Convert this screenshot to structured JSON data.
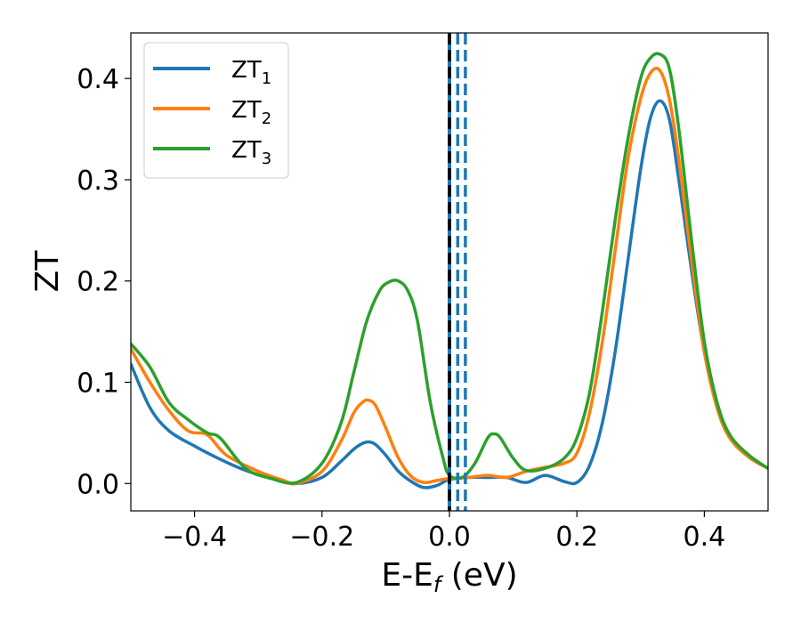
{
  "chart_data": {
    "type": "line",
    "title": "",
    "xlabel": "E-E",
    "xlabel_subscript": "f",
    "xlabel_unit": " (eV)",
    "ylabel": "ZT",
    "xlim": [
      -0.5,
      0.5
    ],
    "ylim": [
      -0.027,
      0.445
    ],
    "x_ticks": [
      -0.4,
      -0.2,
      0.0,
      0.2,
      0.4
    ],
    "x_tick_labels": [
      "−0.4",
      "−0.2",
      "0.0",
      "0.2",
      "0.4"
    ],
    "y_ticks": [
      0.0,
      0.1,
      0.2,
      0.3,
      0.4
    ],
    "y_tick_labels": [
      "0.0",
      "0.1",
      "0.2",
      "0.3",
      "0.4"
    ],
    "grid": false,
    "legend_position": "top-left",
    "series": [
      {
        "name": "ZT",
        "name_subscript": "1",
        "color": "#1f77b4",
        "x": [
          -0.5,
          -0.47,
          -0.44,
          -0.4,
          -0.36,
          -0.32,
          -0.28,
          -0.24,
          -0.2,
          -0.17,
          -0.15,
          -0.135,
          -0.125,
          -0.115,
          -0.1,
          -0.08,
          -0.06,
          -0.04,
          -0.02,
          0.0,
          0.03,
          0.06,
          0.09,
          0.12,
          0.15,
          0.18,
          0.2,
          0.22,
          0.24,
          0.26,
          0.28,
          0.3,
          0.315,
          0.33,
          0.345,
          0.36,
          0.38,
          0.4,
          0.42,
          0.44,
          0.47,
          0.5
        ],
        "y": [
          0.118,
          0.075,
          0.052,
          0.037,
          0.024,
          0.013,
          0.005,
          0.0,
          0.006,
          0.022,
          0.034,
          0.04,
          0.041,
          0.038,
          0.028,
          0.012,
          0.002,
          -0.004,
          -0.002,
          0.004,
          0.006,
          0.006,
          0.006,
          0.001,
          0.008,
          0.002,
          0.001,
          0.018,
          0.06,
          0.13,
          0.22,
          0.31,
          0.36,
          0.378,
          0.36,
          0.3,
          0.21,
          0.13,
          0.075,
          0.045,
          0.026,
          0.015
        ]
      },
      {
        "name": "ZT",
        "name_subscript": "2",
        "color": "#ff7f0e",
        "x": [
          -0.5,
          -0.47,
          -0.44,
          -0.41,
          -0.38,
          -0.35,
          -0.3,
          -0.26,
          -0.24,
          -0.2,
          -0.17,
          -0.15,
          -0.135,
          -0.125,
          -0.115,
          -0.1,
          -0.08,
          -0.06,
          -0.04,
          -0.02,
          0.0,
          0.03,
          0.06,
          0.09,
          0.12,
          0.15,
          0.18,
          0.2,
          0.22,
          0.24,
          0.26,
          0.28,
          0.3,
          0.315,
          0.33,
          0.345,
          0.36,
          0.38,
          0.4,
          0.42,
          0.44,
          0.47,
          0.5
        ],
        "y": [
          0.133,
          0.1,
          0.072,
          0.052,
          0.048,
          0.028,
          0.012,
          0.003,
          0.0,
          0.012,
          0.042,
          0.07,
          0.081,
          0.082,
          0.076,
          0.055,
          0.025,
          0.007,
          0.001,
          0.003,
          0.005,
          0.006,
          0.008,
          0.006,
          0.012,
          0.016,
          0.02,
          0.03,
          0.07,
          0.14,
          0.23,
          0.32,
          0.38,
          0.405,
          0.408,
          0.38,
          0.32,
          0.22,
          0.13,
          0.075,
          0.045,
          0.026,
          0.015
        ]
      },
      {
        "name": "ZT",
        "name_subscript": "3",
        "color": "#2ca02c",
        "x": [
          -0.5,
          -0.47,
          -0.44,
          -0.41,
          -0.38,
          -0.36,
          -0.32,
          -0.28,
          -0.24,
          -0.2,
          -0.17,
          -0.15,
          -0.13,
          -0.11,
          -0.095,
          -0.08,
          -0.065,
          -0.05,
          -0.03,
          -0.01,
          0.0,
          0.02,
          0.04,
          0.06,
          0.07,
          0.08,
          0.1,
          0.12,
          0.15,
          0.18,
          0.2,
          0.22,
          0.24,
          0.26,
          0.28,
          0.3,
          0.315,
          0.33,
          0.345,
          0.36,
          0.38,
          0.4,
          0.42,
          0.44,
          0.47,
          0.5
        ],
        "y": [
          0.138,
          0.115,
          0.08,
          0.063,
          0.05,
          0.045,
          0.015,
          0.005,
          0.001,
          0.02,
          0.06,
          0.11,
          0.16,
          0.19,
          0.199,
          0.2,
          0.19,
          0.16,
          0.08,
          0.025,
          0.008,
          0.006,
          0.02,
          0.045,
          0.049,
          0.045,
          0.025,
          0.013,
          0.015,
          0.025,
          0.045,
          0.09,
          0.17,
          0.26,
          0.34,
          0.4,
          0.42,
          0.424,
          0.41,
          0.35,
          0.24,
          0.14,
          0.08,
          0.048,
          0.028,
          0.015
        ]
      }
    ],
    "vertical_lines": [
      {
        "x": 0.0,
        "color": "#1f77b4",
        "style": "solid"
      },
      {
        "x": 0.0,
        "color": "#000000",
        "style": "dashed"
      },
      {
        "x": 0.013,
        "color": "#1f77b4",
        "style": "dashed"
      },
      {
        "x": 0.025,
        "color": "#1f77b4",
        "style": "dashed"
      }
    ]
  }
}
